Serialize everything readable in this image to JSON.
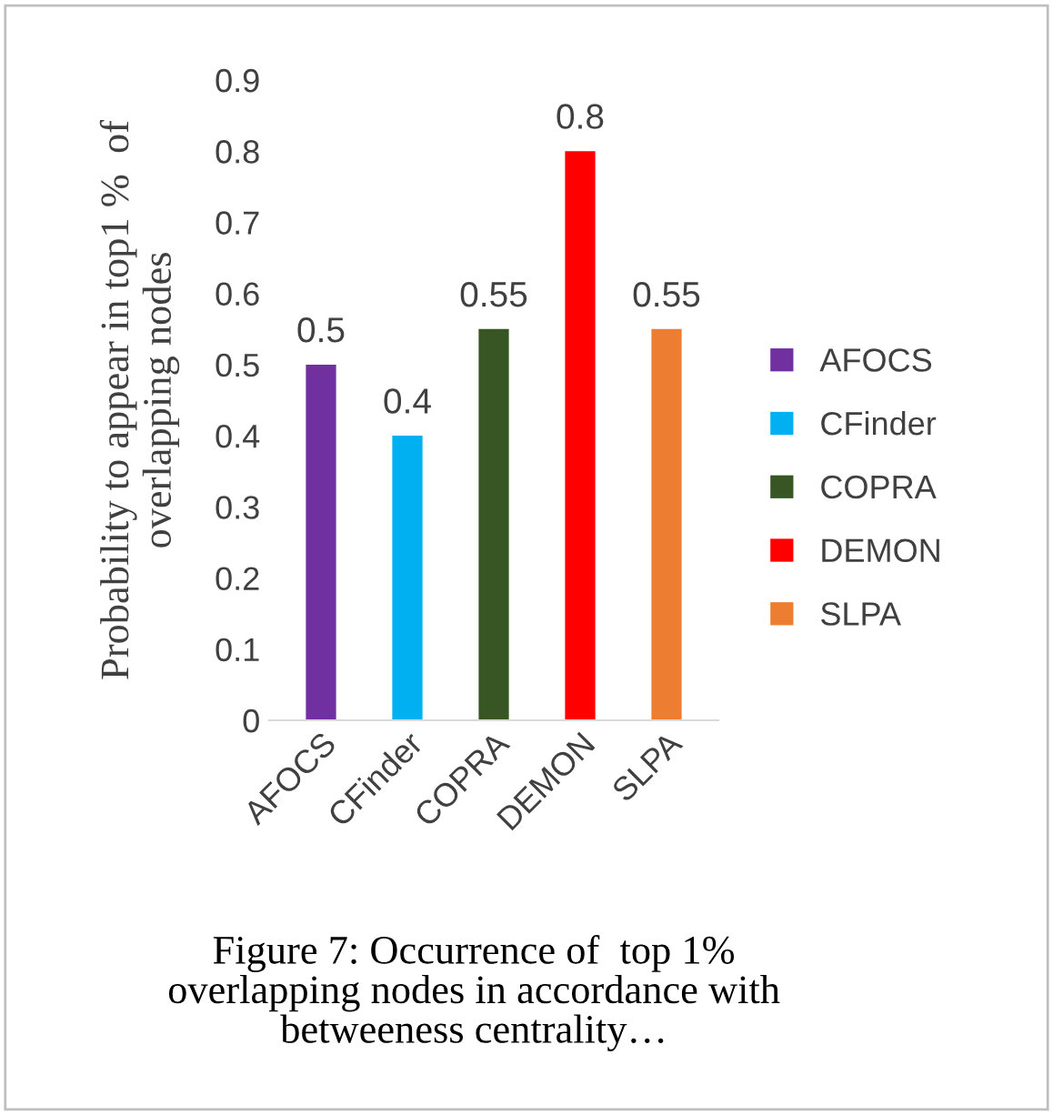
{
  "chart_data": {
    "type": "bar",
    "ylabel": "Probability to appear in top1 %  of\noverlapping nodes",
    "categories": [
      "AFOCS",
      "CFinder",
      "COPRA",
      "DEMON",
      "SLPA"
    ],
    "series": [
      {
        "name": "AFOCS",
        "color": "#7030a0",
        "values": [
          0.5,
          null,
          null,
          null,
          null
        ]
      },
      {
        "name": "CFinder",
        "color": "#00b0f0",
        "values": [
          null,
          0.4,
          null,
          null,
          null
        ]
      },
      {
        "name": "COPRA",
        "color": "#375623",
        "values": [
          null,
          null,
          0.55,
          null,
          null
        ]
      },
      {
        "name": "DEMON",
        "color": "#ff0000",
        "values": [
          null,
          null,
          null,
          0.8,
          null
        ]
      },
      {
        "name": "SLPA",
        "color": "#ed7d31",
        "values": [
          null,
          null,
          null,
          null,
          0.55
        ]
      }
    ],
    "ylim": [
      0,
      0.9
    ],
    "yticks": [
      0,
      0.1,
      0.2,
      0.3,
      0.4,
      0.5,
      0.6,
      0.7,
      0.8,
      0.9
    ],
    "grid": false,
    "legend": "right",
    "data_labels": true,
    "annotations": [
      "Figure 7: Occurrence of  top 1%\noverlapping nodes in accordance with\nbetweeness centrality…"
    ]
  }
}
